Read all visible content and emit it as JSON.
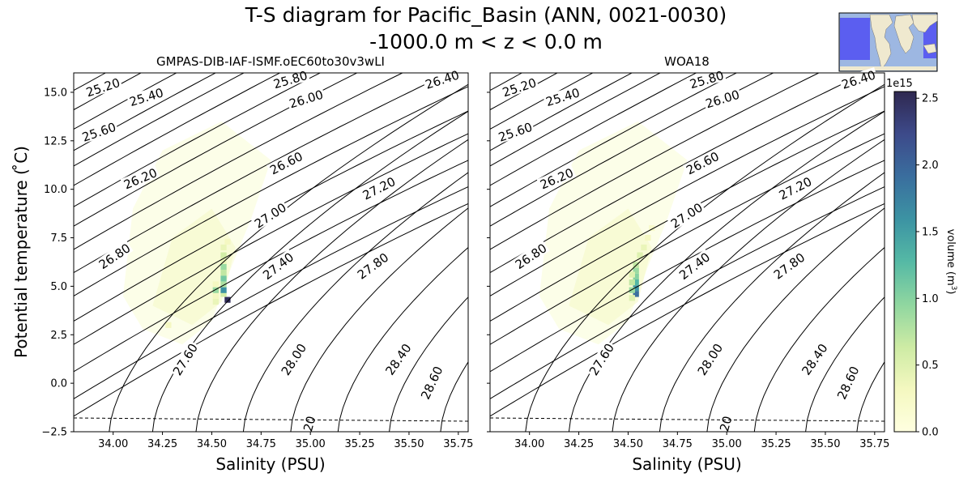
{
  "figure": {
    "title_line1": "T-S diagram for Pacific_Basin (ANN, 0021-0030)",
    "title_line2": "-1000.0 m < z < 0.0 m",
    "inset_map": "world-map-inset-pacific-basin-highlighted"
  },
  "colors": {
    "contour": "#000000",
    "freezing_line": "#000000",
    "cmap": [
      "#ffffe0",
      "#f4f8c0",
      "#cdeba4",
      "#8fd6a0",
      "#55b9a5",
      "#3c93a3",
      "#3a6e9e",
      "#3d4a8a",
      "#2f2850"
    ],
    "map_ocean_highlight": "#5b5ef0",
    "map_ocean": "#9db7e2",
    "map_land": "#efe9cf"
  },
  "chart_data": [
    {
      "type": "heatmap",
      "title": "GMPAS-DIB-IAF-ISMF.oEC60to30v3wLI",
      "xlabel": "Salinity (PSU)",
      "ylabel": "Potential temperature ( ̊C)",
      "xlim": [
        33.8,
        35.8
      ],
      "ylim": [
        -2.5,
        16.0
      ],
      "xticks": [
        "34.00",
        "34.25",
        "34.50",
        "34.75",
        "35.00",
        "35.25",
        "35.50",
        "35.75"
      ],
      "yticks": [
        "−2.5",
        "0.0",
        "2.5",
        "5.0",
        "7.5",
        "10.0",
        "12.5",
        "15.0"
      ],
      "density_contour_labels": [
        "25.20",
        "25.40",
        "25.60",
        "25.80",
        "26.00",
        "26.20",
        "26.40",
        "26.60",
        "26.80",
        "27.00",
        "27.20",
        "27.40",
        "27.60",
        "27.80",
        "28.00",
        "28.40",
        "28.60",
        "20"
      ],
      "freezing_line": "dashed",
      "cells": [
        {
          "s": 34.58,
          "t": 4.3,
          "v": 2.5
        },
        {
          "s": 34.56,
          "t": 4.6,
          "v": 0.6
        },
        {
          "s": 34.56,
          "t": 4.8,
          "v": 1.6
        },
        {
          "s": 34.56,
          "t": 5.1,
          "v": 0.8
        },
        {
          "s": 34.56,
          "t": 5.4,
          "v": 1.1
        },
        {
          "s": 34.56,
          "t": 5.7,
          "v": 0.7
        },
        {
          "s": 34.56,
          "t": 6.0,
          "v": 0.9
        },
        {
          "s": 34.56,
          "t": 6.3,
          "v": 0.4
        },
        {
          "s": 34.56,
          "t": 6.6,
          "v": 0.6
        },
        {
          "s": 34.56,
          "t": 7.0,
          "v": 0.4
        },
        {
          "s": 34.58,
          "t": 7.3,
          "v": 0.3
        },
        {
          "s": 34.52,
          "t": 4.2,
          "v": 0.4
        },
        {
          "s": 34.52,
          "t": 4.5,
          "v": 0.3
        },
        {
          "s": 34.52,
          "t": 4.8,
          "v": 0.9
        },
        {
          "s": 34.52,
          "t": 5.1,
          "v": 0.3
        },
        {
          "s": 34.28,
          "t": 3.0,
          "v": 0.3
        }
      ],
      "faint_region": "broad low-volume cloud roughly 34.0–34.8 PSU, 2–12 °C"
    },
    {
      "type": "heatmap",
      "title": "WOA18",
      "xlabel": "Salinity (PSU)",
      "ylabel": "",
      "xlim": [
        33.8,
        35.8
      ],
      "ylim": [
        -2.5,
        16.0
      ],
      "xticks": [
        "34.00",
        "34.25",
        "34.50",
        "34.75",
        "35.00",
        "35.25",
        "35.50",
        "35.75"
      ],
      "density_contour_labels": [
        "25.20",
        "25.40",
        "25.60",
        "25.80",
        "26.00",
        "26.20",
        "26.40",
        "26.60",
        "26.80",
        "27.00",
        "27.20",
        "27.40",
        "27.60",
        "27.80",
        "28.00",
        "28.40",
        "28.60",
        "20"
      ],
      "freezing_line": "dashed",
      "cells": [
        {
          "s": 34.54,
          "t": 4.6,
          "v": 1.9
        },
        {
          "s": 34.54,
          "t": 4.9,
          "v": 1.6
        },
        {
          "s": 34.54,
          "t": 5.2,
          "v": 1.3
        },
        {
          "s": 34.54,
          "t": 5.5,
          "v": 1.0
        },
        {
          "s": 34.54,
          "t": 5.8,
          "v": 0.9
        },
        {
          "s": 34.54,
          "t": 6.1,
          "v": 0.7
        },
        {
          "s": 34.52,
          "t": 4.4,
          "v": 0.5
        },
        {
          "s": 34.52,
          "t": 4.8,
          "v": 0.9
        },
        {
          "s": 34.52,
          "t": 5.2,
          "v": 0.7
        },
        {
          "s": 34.52,
          "t": 5.6,
          "v": 0.5
        },
        {
          "s": 34.56,
          "t": 6.6,
          "v": 0.5
        },
        {
          "s": 34.58,
          "t": 7.0,
          "v": 0.4
        },
        {
          "s": 34.6,
          "t": 7.5,
          "v": 0.3
        },
        {
          "s": 34.62,
          "t": 8.0,
          "v": 0.2
        }
      ],
      "faint_region": "broad low-volume cloud roughly 34.0–34.8 PSU, 2–12 °C"
    }
  ],
  "colorbar": {
    "label": "volume (m³)",
    "label_main": "volume (m",
    "label_sup": "3",
    "label_tail": ")",
    "offset": "1e15",
    "ticks": [
      "0.0",
      "0.5",
      "1.0",
      "1.5",
      "2.0",
      "2.5"
    ],
    "vmin": 0.0,
    "vmax": 2.55
  }
}
